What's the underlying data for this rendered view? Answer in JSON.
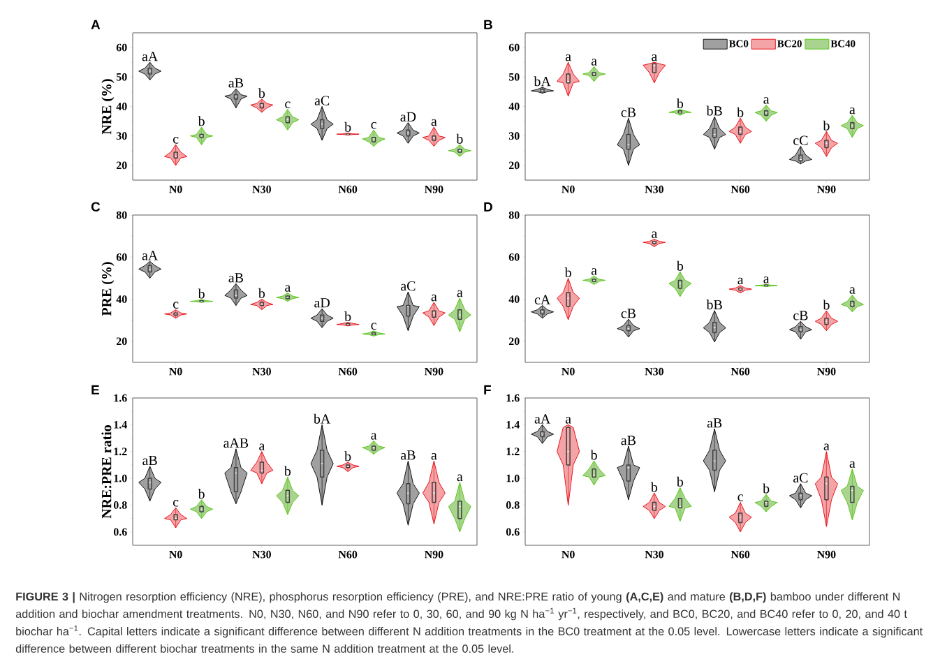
{
  "chart_data": [
    {
      "type": "box",
      "title": "A",
      "ylabel": "NRE (%)",
      "categories": [
        "N0",
        "N30",
        "N60",
        "N90"
      ],
      "ylim": [
        15,
        65
      ],
      "yticks": [
        20,
        30,
        40,
        50,
        60
      ],
      "legend": false,
      "series": [
        {
          "color": "#a0a0a0",
          "value_labels": [
            "aA",
            "aB",
            "aC",
            "aD"
          ],
          "boxes": [
            {
              "low": 49,
              "q1": 51,
              "median": 52,
              "q3": 53,
              "high": 55
            },
            {
              "low": 39.5,
              "q1": 42.5,
              "median": 43.5,
              "q3": 44,
              "high": 46
            },
            {
              "low": 28.5,
              "q1": 32.5,
              "median": 34,
              "q3": 35.5,
              "high": 40
            },
            {
              "low": 27.5,
              "q1": 30,
              "median": 31,
              "q3": 32,
              "high": 34.5
            }
          ]
        },
        {
          "color": "#f4a3a6",
          "value_labels": [
            "c",
            "b",
            "b",
            "a"
          ],
          "boxes": [
            {
              "low": 20,
              "q1": 22.5,
              "median": 23,
              "q3": 24.5,
              "high": 27
            },
            {
              "low": 38,
              "q1": 39.5,
              "median": 40.5,
              "q3": 41,
              "high": 42.5
            },
            {
              "low": 30.3,
              "q1": 30.5,
              "median": 30.6,
              "q3": 30.7,
              "high": 31
            },
            {
              "low": 26.5,
              "q1": 28.5,
              "median": 29.5,
              "q3": 30,
              "high": 33
            }
          ]
        },
        {
          "color": "#a9d48f",
          "value_labels": [
            "b",
            "c",
            "c",
            "b"
          ],
          "boxes": [
            {
              "low": 27,
              "q1": 29.5,
              "median": 30,
              "q3": 30.5,
              "high": 33
            },
            {
              "low": 32,
              "q1": 34.5,
              "median": 35.5,
              "q3": 36.5,
              "high": 39
            },
            {
              "low": 26.5,
              "q1": 28,
              "median": 29,
              "q3": 29.5,
              "high": 32
            },
            {
              "low": 23,
              "q1": 24.5,
              "median": 25,
              "q3": 25.5,
              "high": 27
            }
          ]
        }
      ]
    },
    {
      "type": "box",
      "title": "B",
      "categories": [
        "N0",
        "N30",
        "N60",
        "N90"
      ],
      "ylim": [
        15,
        65
      ],
      "yticks": [
        20,
        30,
        40,
        50,
        60
      ],
      "legend": "top right",
      "series": [
        {
          "name": "BC0",
          "color": "#a0a0a0",
          "value_labels": [
            "bA",
            "cB",
            "bB",
            "cC"
          ],
          "boxes": [
            {
              "low": 44.5,
              "q1": 45,
              "median": 45.3,
              "q3": 45.8,
              "high": 46.5
            },
            {
              "low": 20,
              "q1": 25.5,
              "median": 27,
              "q3": 30.5,
              "high": 36
            },
            {
              "low": 25.5,
              "q1": 29.5,
              "median": 30.5,
              "q3": 32.5,
              "high": 36.5
            },
            {
              "low": 20.5,
              "q1": 21.5,
              "median": 22,
              "q3": 23.5,
              "high": 26.5
            }
          ]
        },
        {
          "name": "BC20",
          "color": "#f4a3a6",
          "value_labels": [
            "a",
            "a",
            "b",
            "b"
          ],
          "boxes": [
            {
              "low": 43.5,
              "q1": 48,
              "median": 48.5,
              "q3": 51,
              "high": 55
            },
            {
              "low": 48,
              "q1": 51.5,
              "median": 54,
              "q3": 54.5,
              "high": 55
            },
            {
              "low": 27.5,
              "q1": 30.5,
              "median": 31.5,
              "q3": 33,
              "high": 36
            },
            {
              "low": 23,
              "q1": 26,
              "median": 27.5,
              "q3": 28.5,
              "high": 31.5
            }
          ]
        },
        {
          "name": "BC40",
          "color": "#a9d48f",
          "value_labels": [
            "a",
            "b",
            "a",
            "a"
          ],
          "boxes": [
            {
              "low": 48.5,
              "q1": 50.5,
              "median": 51,
              "q3": 51.5,
              "high": 53.5
            },
            {
              "low": 37,
              "q1": 37.8,
              "median": 38,
              "q3": 38.5,
              "high": 39
            },
            {
              "low": 35,
              "q1": 37,
              "median": 38,
              "q3": 38.5,
              "high": 40.5
            },
            {
              "low": 29.5,
              "q1": 32.5,
              "median": 33.5,
              "q3": 34.5,
              "high": 37
            }
          ]
        }
      ]
    },
    {
      "type": "box",
      "title": "C",
      "ylabel": "PRE (%)",
      "categories": [
        "N0",
        "N30",
        "N60",
        "N90"
      ],
      "ylim": [
        10,
        80
      ],
      "yticks": [
        20,
        40,
        60,
        80
      ],
      "legend": false,
      "series": [
        {
          "color": "#a0a0a0",
          "value_labels": [
            "aA",
            "aB",
            "aD",
            "aC"
          ],
          "boxes": [
            {
              "low": 50,
              "q1": 53,
              "median": 54.3,
              "q3": 56,
              "high": 58
            },
            {
              "low": 37,
              "q1": 40.5,
              "median": 41.8,
              "q3": 44.4,
              "high": 47.4
            },
            {
              "low": 26.5,
              "q1": 29.5,
              "median": 31,
              "q3": 32.5,
              "high": 35.5
            },
            {
              "low": 25,
              "q1": 32,
              "median": 36.5,
              "q3": 37,
              "high": 43.5
            }
          ]
        },
        {
          "color": "#f4a3a6",
          "value_labels": [
            "c",
            "b",
            "b",
            "a"
          ],
          "boxes": [
            {
              "low": 31,
              "q1": 32.5,
              "median": 33,
              "q3": 33.5,
              "high": 35
            },
            {
              "low": 35,
              "q1": 37,
              "median": 37.5,
              "q3": 38.5,
              "high": 40
            },
            {
              "low": 27.3,
              "q1": 27.8,
              "median": 28,
              "q3": 28.5,
              "high": 29
            },
            {
              "low": 27.5,
              "q1": 31.5,
              "median": 33.5,
              "q3": 34.5,
              "high": 38.5
            }
          ]
        },
        {
          "color": "#a9d48f",
          "value_labels": [
            "b",
            "a",
            "c",
            "a"
          ],
          "boxes": [
            {
              "low": 38.5,
              "q1": 38.8,
              "median": 39,
              "q3": 39.3,
              "high": 39.8
            },
            {
              "low": 39,
              "q1": 40.3,
              "median": 40.8,
              "q3": 41.5,
              "high": 43
            },
            {
              "low": 22.5,
              "q1": 23.2,
              "median": 23.5,
              "q3": 24,
              "high": 25
            },
            {
              "low": 24.5,
              "q1": 30.5,
              "median": 32.5,
              "q3": 35,
              "high": 40.5
            }
          ]
        }
      ]
    },
    {
      "type": "box",
      "title": "D",
      "categories": [
        "N0",
        "N30",
        "N60",
        "N90"
      ],
      "ylim": [
        10,
        80
      ],
      "yticks": [
        20,
        40,
        60,
        80
      ],
      "legend": false,
      "series": [
        {
          "color": "#a0a0a0",
          "value_labels": [
            "cA",
            "cB",
            "bB",
            "cB"
          ],
          "boxes": [
            {
              "low": 31,
              "q1": 33,
              "median": 34,
              "q3": 35,
              "high": 37
            },
            {
              "low": 22,
              "q1": 25,
              "median": 26,
              "q3": 27.5,
              "high": 30.5
            },
            {
              "low": 19.7,
              "q1": 24.1,
              "median": 26.4,
              "q3": 29,
              "high": 34.6
            },
            {
              "low": 21,
              "q1": 24.5,
              "median": 25.5,
              "q3": 27,
              "high": 29.5
            }
          ]
        },
        {
          "color": "#f4a3a6",
          "value_labels": [
            "b",
            "a",
            "a",
            "b"
          ],
          "boxes": [
            {
              "low": 30.3,
              "q1": 36.6,
              "median": 40.5,
              "q3": 43.2,
              "high": 49.9
            },
            {
              "low": 65,
              "q1": 66.5,
              "median": 67,
              "q3": 67.5,
              "high": 68.5
            },
            {
              "low": 43,
              "q1": 44.3,
              "median": 44.8,
              "q3": 45.3,
              "high": 46.5
            },
            {
              "low": 25,
              "q1": 28,
              "median": 29.5,
              "q3": 31,
              "high": 34.5
            }
          ]
        },
        {
          "color": "#a9d48f",
          "value_labels": [
            "a",
            "b",
            "a",
            "a"
          ],
          "boxes": [
            {
              "low": 47,
              "q1": 48.5,
              "median": 49,
              "q3": 49.5,
              "high": 51
            },
            {
              "low": 41.3,
              "q1": 45.2,
              "median": 47.5,
              "q3": 49,
              "high": 53
            },
            {
              "low": 46,
              "q1": 46.3,
              "median": 46.5,
              "q3": 46.7,
              "high": 47
            },
            {
              "low": 34,
              "q1": 36.5,
              "median": 37.5,
              "q3": 39,
              "high": 42
            }
          ]
        }
      ]
    },
    {
      "type": "box",
      "title": "E",
      "ylabel": "NRE:PRE ratio",
      "categories": [
        "N0",
        "N30",
        "N60",
        "N90"
      ],
      "ylim": [
        0.5,
        1.6
      ],
      "yticks": [
        {
          "value": 0.6,
          "label": "0.6"
        },
        {
          "value": 0.8,
          "label": "0.8"
        },
        {
          "value": 1.0,
          "label": "1.0"
        },
        {
          "value": 1.2,
          "label": "1.2"
        },
        {
          "value": 1.4,
          "label": "1.4"
        },
        {
          "value": 1.6,
          "label": "1.6"
        }
      ],
      "legend": false,
      "series": [
        {
          "color": "#a0a0a0",
          "value_labels": [
            "aB",
            "aAB",
            "bA",
            "aB"
          ],
          "boxes": [
            {
              "low": 0.83,
              "q1": 0.92,
              "median": 0.97,
              "q3": 1.0,
              "high": 1.09
            },
            {
              "low": 0.81,
              "q1": 0.9,
              "median": 1.04,
              "q3": 1.08,
              "high": 1.22
            },
            {
              "low": 0.8,
              "q1": 1.01,
              "median": 1.11,
              "q3": 1.21,
              "high": 1.4
            },
            {
              "low": 0.65,
              "q1": 0.81,
              "median": 0.89,
              "q3": 0.96,
              "high": 1.13
            }
          ]
        },
        {
          "color": "#f4a3a6",
          "value_labels": [
            "c",
            "a",
            "b",
            "a"
          ],
          "boxes": [
            {
              "low": 0.63,
              "q1": 0.69,
              "median": 0.7,
              "q3": 0.73,
              "high": 0.78
            },
            {
              "low": 0.96,
              "q1": 1.04,
              "median": 1.06,
              "q3": 1.12,
              "high": 1.2
            },
            {
              "low": 1.05,
              "q1": 1.08,
              "median": 1.09,
              "q3": 1.1,
              "high": 1.12
            },
            {
              "low": 0.66,
              "q1": 0.82,
              "median": 0.89,
              "q3": 0.97,
              "high": 1.13
            }
          ]
        },
        {
          "color": "#a9d48f",
          "value_labels": [
            "b",
            "b",
            "a",
            "a"
          ],
          "boxes": [
            {
              "low": 0.7,
              "q1": 0.75,
              "median": 0.77,
              "q3": 0.79,
              "high": 0.84
            },
            {
              "low": 0.73,
              "q1": 0.82,
              "median": 0.87,
              "q3": 0.91,
              "high": 1.01
            },
            {
              "low": 1.18,
              "q1": 1.21,
              "median": 1.23,
              "q3": 1.24,
              "high": 1.28
            },
            {
              "low": 0.6,
              "q1": 0.7,
              "median": 0.79,
              "q3": 0.83,
              "high": 0.97
            }
          ]
        }
      ]
    },
    {
      "type": "box",
      "title": "F",
      "categories": [
        "N0",
        "N30",
        "N60",
        "N90"
      ],
      "ylim": [
        0.5,
        1.6
      ],
      "yticks": [
        {
          "value": 0.6,
          "label": "0.6"
        },
        {
          "value": 0.8,
          "label": "0.8"
        },
        {
          "value": 1.0,
          "label": "1.0"
        },
        {
          "value": 1.2,
          "label": "1.2"
        },
        {
          "value": 1.4,
          "label": "1.4"
        },
        {
          "value": 1.6,
          "label": "1.6"
        }
      ],
      "legend": false,
      "annotations": [
        "**FIGURE 3 |** Nitrogen resorption efficiency (NRE), phosphorus resorption efficiency (PRE), and NRE:PRE ratio of young **(A,C,E)** and mature **(B,D,F)** bamboo under different N addition and biochar amendment treatments. N0, N30, N60, and N90 refer to 0, 30, 60, and 90 kg N ha$^{−1}$ yr$^{−1}$, respectively, and BC0, BC20, and BC40 refer to 0, 20, and 40 t biochar ha$^{−1}$. Capital letters indicate a significant difference between different N addition treatments in the BC0 treatment at the 0.05 level. Lowercase letters indicate a significant difference between different biochar treatments in the same N addition treatment at the 0.05 level."
      ],
      "series": [
        {
          "color": "#a0a0a0",
          "value_labels": [
            "aA",
            "aB",
            "aB",
            "aC"
          ],
          "boxes": [
            {
              "low": 1.26,
              "q1": 1.31,
              "median": 1.33,
              "q3": 1.35,
              "high": 1.4
            },
            {
              "low": 0.84,
              "q1": 0.98,
              "median": 1.08,
              "q3": 1.1,
              "high": 1.24
            },
            {
              "low": 0.9,
              "q1": 1.06,
              "median": 1.13,
              "q3": 1.21,
              "high": 1.37
            },
            {
              "low": 0.78,
              "q1": 0.84,
              "median": 0.87,
              "q3": 0.89,
              "high": 0.96
            }
          ]
        },
        {
          "color": "#f4a3a6",
          "value_labels": [
            "a",
            "b",
            "c",
            "a"
          ],
          "boxes": [
            {
              "low": 0.8,
              "q1": 1.1,
              "median": 1.2,
              "q3": 1.38,
              "high": 1.4
            },
            {
              "low": 0.7,
              "q1": 0.76,
              "median": 0.79,
              "q3": 0.82,
              "high": 0.89
            },
            {
              "low": 0.6,
              "q1": 0.67,
              "median": 0.71,
              "q3": 0.74,
              "high": 0.82
            },
            {
              "low": 0.64,
              "q1": 0.84,
              "median": 0.96,
              "q3": 1.01,
              "high": 1.2
            }
          ]
        },
        {
          "color": "#a9d48f",
          "value_labels": [
            "b",
            "b",
            "b",
            "a"
          ],
          "boxes": [
            {
              "low": 0.95,
              "q1": 1.01,
              "median": 1.02,
              "q3": 1.07,
              "high": 1.13
            },
            {
              "low": 0.68,
              "q1": 0.78,
              "median": 0.79,
              "q3": 0.85,
              "high": 0.93
            },
            {
              "low": 0.75,
              "q1": 0.79,
              "median": 0.82,
              "q3": 0.83,
              "high": 0.88
            },
            {
              "low": 0.69,
              "q1": 0.82,
              "median": 0.91,
              "q3": 0.94,
              "high": 1.07
            }
          ]
        }
      ]
    }
  ]
}
